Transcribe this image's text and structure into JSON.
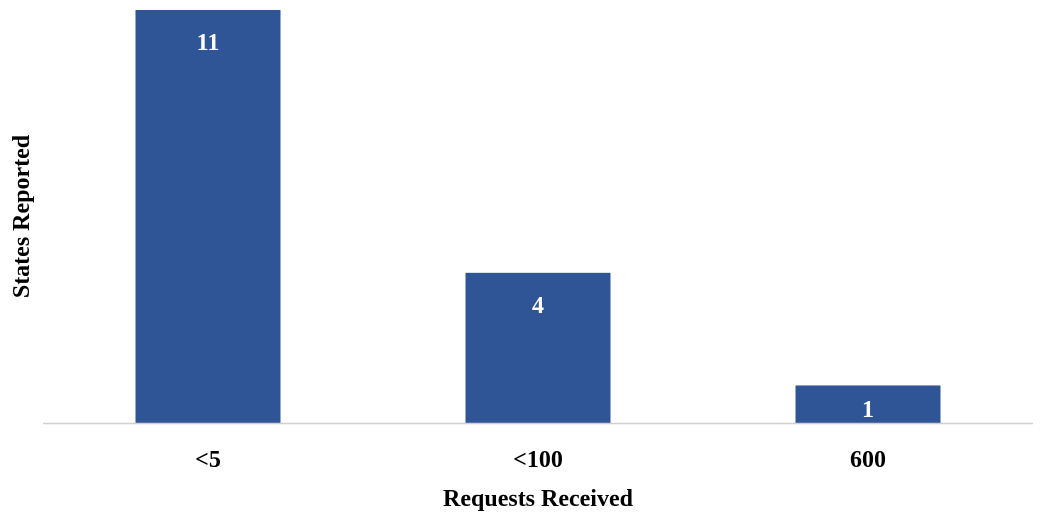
{
  "chart_data": {
    "type": "bar",
    "categories": [
      "<5",
      "<100",
      "600"
    ],
    "values": [
      11,
      4,
      1
    ],
    "data_labels": [
      "11",
      "4",
      "1"
    ],
    "title": "",
    "xlabel": "Requests Received",
    "ylabel": "States Reported",
    "ylim": [
      0,
      11
    ],
    "grid": false,
    "legend": "none",
    "bar_color": "#2f5597",
    "axis_color": "#d0d0d0"
  }
}
